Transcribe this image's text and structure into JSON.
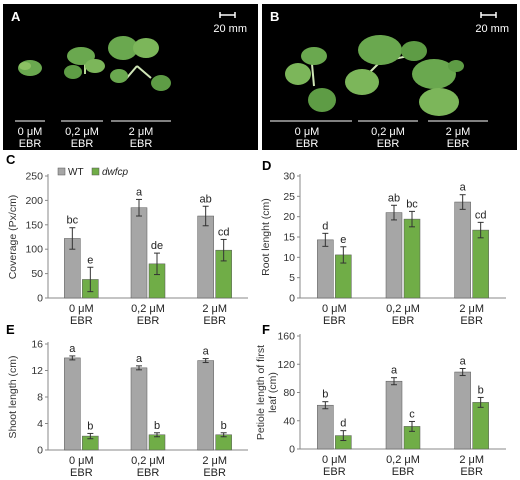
{
  "colors": {
    "wt": "#a6a6a6",
    "dwfcp": "#70ad47",
    "photo_bg": "#000000",
    "plant": "#6aa84f"
  },
  "photos": [
    {
      "letter": "A",
      "scale_label": "20 mm",
      "groups": [
        {
          "line1": "0 μM",
          "line2": "EBR"
        },
        {
          "line1": "0,2 μM",
          "line2": "EBR"
        },
        {
          "line1": "2 μM",
          "line2": "EBR"
        }
      ]
    },
    {
      "letter": "B",
      "scale_label": "20 mm",
      "groups": [
        {
          "line1": "0 μM",
          "line2": "EBR"
        },
        {
          "line1": "0,2 μM",
          "line2": "EBR"
        },
        {
          "line1": "2 μM",
          "line2": "EBR"
        }
      ]
    }
  ],
  "chart_data": [
    {
      "letter": "C",
      "type": "bar",
      "ylabel": "Coverage (Px/cm)",
      "ylim": [
        0,
        250
      ],
      "yticks": [
        0,
        50,
        100,
        150,
        200,
        250
      ],
      "categories": [
        [
          "0 μM",
          "EBR"
        ],
        [
          "0,2 μM",
          "EBR"
        ],
        [
          "2 μM",
          "EBR"
        ]
      ],
      "legend": {
        "position": "top-left",
        "entries": [
          "WT",
          "dwfcp"
        ]
      },
      "series": [
        {
          "name": "WT",
          "values": [
            122,
            185,
            168
          ],
          "errors": [
            22,
            17,
            20
          ],
          "letters": [
            "bc",
            "a",
            "ab"
          ]
        },
        {
          "name": "dwfcp",
          "values": [
            38,
            70,
            98
          ],
          "errors": [
            25,
            22,
            22
          ],
          "letters": [
            "e",
            "de",
            "cd"
          ]
        }
      ]
    },
    {
      "letter": "D",
      "type": "bar",
      "ylabel": "Root lenght (cm)",
      "ylim": [
        0,
        30
      ],
      "yticks": [
        0,
        5,
        10,
        15,
        20,
        25,
        30
      ],
      "categories": [
        [
          "0 μM",
          "EBR"
        ],
        [
          "0,2 μM",
          "EBR"
        ],
        [
          "2 μM",
          "EBR"
        ]
      ],
      "series": [
        {
          "name": "WT",
          "values": [
            14.3,
            21.0,
            23.6
          ],
          "errors": [
            1.6,
            1.8,
            1.8
          ],
          "letters": [
            "d",
            "ab",
            "a"
          ]
        },
        {
          "name": "dwfcp",
          "values": [
            10.6,
            19.4,
            16.7
          ],
          "errors": [
            2.0,
            1.9,
            1.9
          ],
          "letters": [
            "e",
            "bc",
            "cd"
          ]
        }
      ]
    },
    {
      "letter": "E",
      "type": "bar",
      "ylabel": "Shoot length (cm)",
      "ylim": [
        0,
        16
      ],
      "yticks": [
        0,
        4,
        8,
        12,
        16
      ],
      "categories": [
        [
          "0 μM",
          "EBR"
        ],
        [
          "0,2 μM",
          "EBR"
        ],
        [
          "2 μM",
          "EBR"
        ]
      ],
      "series": [
        {
          "name": "WT",
          "values": [
            13.9,
            12.4,
            13.5
          ],
          "errors": [
            0.3,
            0.3,
            0.3
          ],
          "letters": [
            "a",
            "a",
            "a"
          ]
        },
        {
          "name": "dwfcp",
          "values": [
            2.1,
            2.3,
            2.3
          ],
          "errors": [
            0.4,
            0.3,
            0.3
          ],
          "letters": [
            "b",
            "b",
            "b"
          ]
        }
      ]
    },
    {
      "letter": "F",
      "type": "bar",
      "ylabel": "Petiole length of first leaf (cm)",
      "ylim": [
        0,
        160
      ],
      "yticks": [
        0,
        40,
        80,
        120,
        160
      ],
      "categories": [
        [
          "0 μM",
          "EBR"
        ],
        [
          "0,2 μM",
          "EBR"
        ],
        [
          "2 μM",
          "EBR"
        ]
      ],
      "series": [
        {
          "name": "WT",
          "values": [
            62,
            96,
            109
          ],
          "errors": [
            5,
            5,
            5
          ],
          "letters": [
            "b",
            "a",
            "a"
          ]
        },
        {
          "name": "dwfcp",
          "values": [
            19,
            32,
            66
          ],
          "errors": [
            7,
            7,
            7
          ],
          "letters": [
            "d",
            "c",
            "b"
          ]
        }
      ]
    }
  ]
}
